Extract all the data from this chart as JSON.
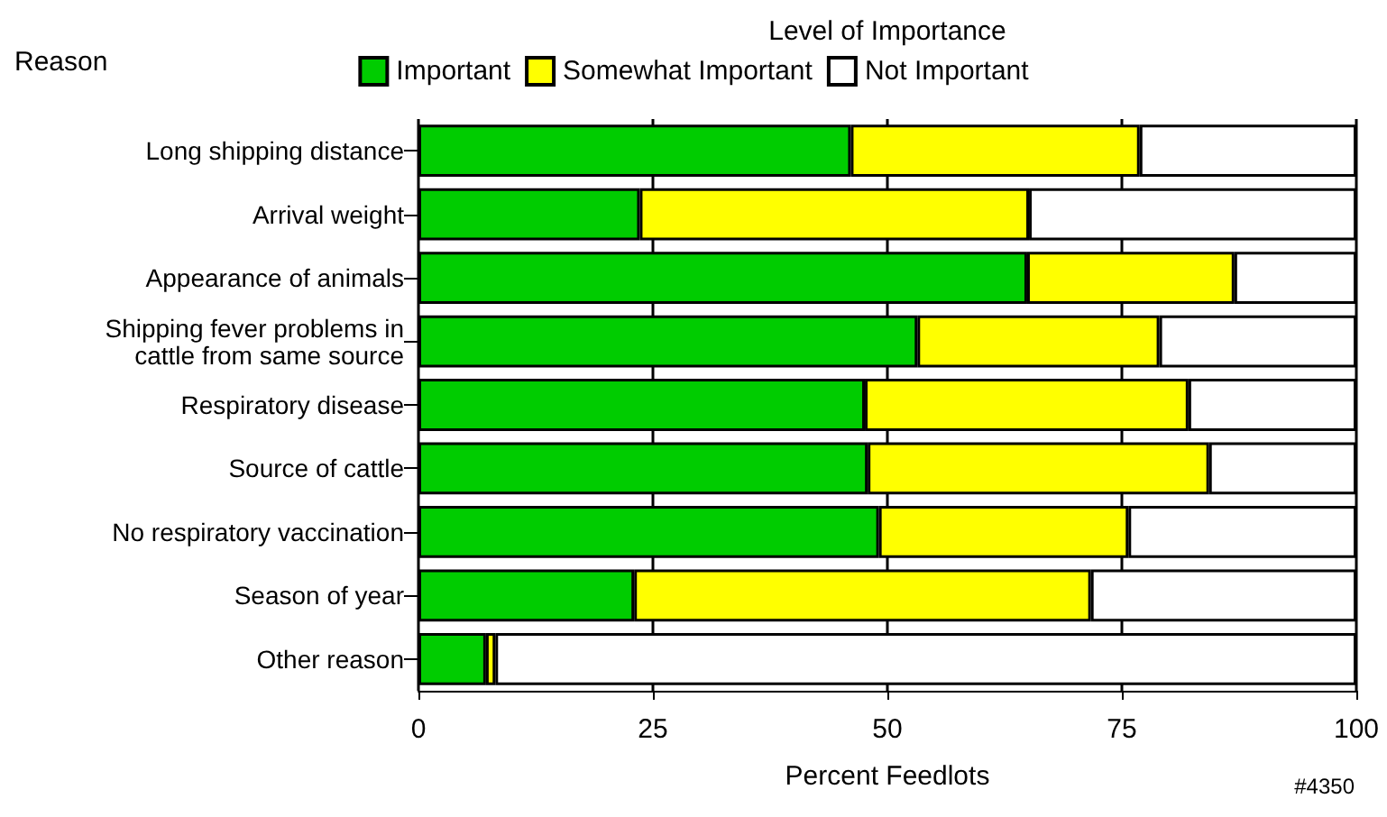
{
  "chart_data": {
    "type": "bar",
    "orientation": "horizontal",
    "stacked": true,
    "ylabel": "Reason",
    "xlabel": "Percent Feedlots",
    "legend_title": "Level of Importance",
    "categories": [
      "Long shipping distance",
      "Arrival weight",
      "Appearance of animals",
      "Shipping fever problems in\ncattle from same source",
      "Respiratory disease",
      "Source of cattle",
      "No respiratory vaccination",
      "Season of year",
      "Other reason"
    ],
    "series": [
      {
        "name": "Important",
        "color": "#00cc00",
        "values": [
          46.1,
          23.6,
          64.9,
          53.2,
          47.6,
          47.9,
          49.1,
          23.0,
          7.2
        ]
      },
      {
        "name": "Somewhat Important",
        "color": "#ffff00",
        "values": [
          30.8,
          41.5,
          22.1,
          25.8,
          34.5,
          36.4,
          26.6,
          48.7,
          1.0
        ]
      },
      {
        "name": "Not Important",
        "color": "#ffffff",
        "values": [
          23.1,
          34.9,
          13.0,
          21.0,
          17.9,
          15.7,
          24.3,
          28.3,
          91.8
        ]
      }
    ],
    "xlim": [
      0,
      100
    ],
    "xticks": [
      0,
      25,
      50,
      75,
      100
    ],
    "grid": "x",
    "legend": "top",
    "annotations": [
      "#4350"
    ]
  }
}
